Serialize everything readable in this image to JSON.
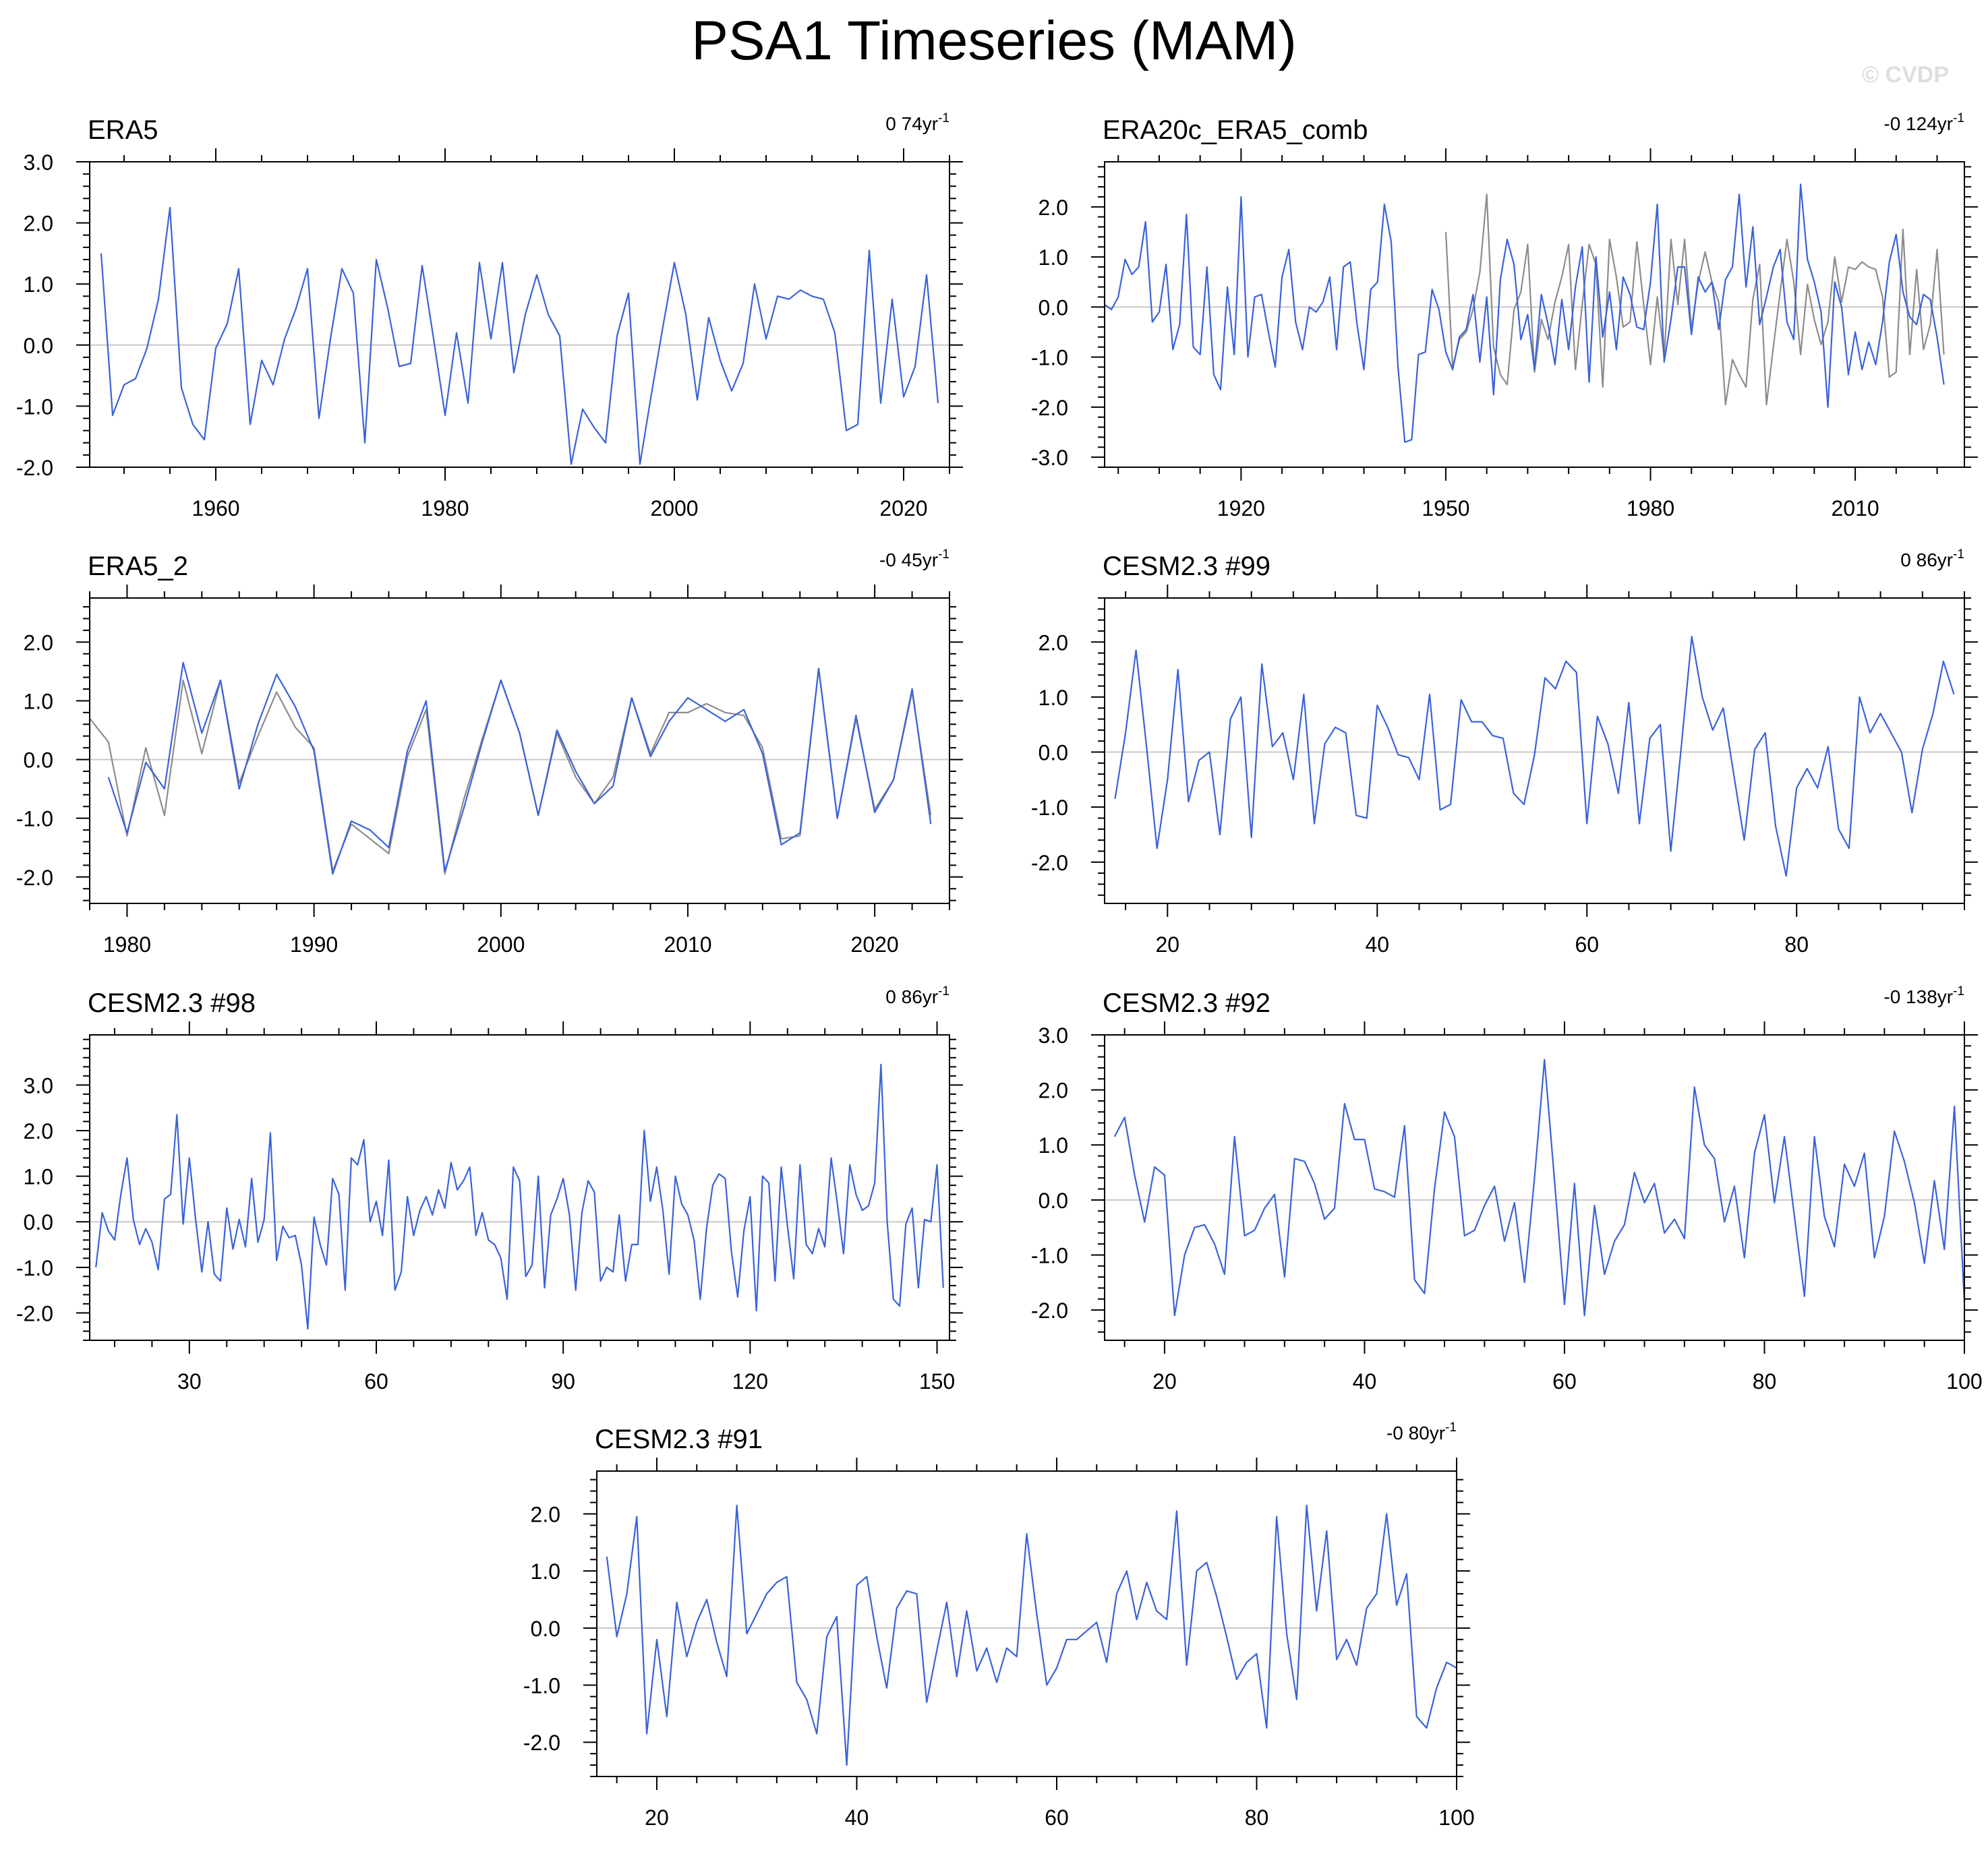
{
  "page": {
    "title": "PSA1 Timeseries (MAM)",
    "watermark": "© CVDP",
    "trend_suffix": "yr",
    "trend_exp": "-1"
  },
  "style": {
    "line_color": "#3a62d9",
    "second_color": "#8c8c8c",
    "zero_color": "#c8c8c8"
  },
  "chart_data": [
    {
      "type": "line",
      "title": "ERA5",
      "trend": "0 74",
      "xlim": [
        1949,
        2024
      ],
      "ylim": [
        -2.0,
        3.0
      ],
      "yticks": [
        -2.0,
        -1.0,
        0.0,
        1.0,
        2.0,
        3.0
      ],
      "xticks": [
        1960,
        1980,
        2000,
        2020
      ],
      "x_start": 1950,
      "series": [
        {
          "name": "ERA5",
          "values": [
            1.5,
            -1.15,
            -0.65,
            -0.55,
            -0.05,
            0.75,
            2.25,
            -0.7,
            -1.3,
            -1.55,
            -0.05,
            0.35,
            1.25,
            -1.3,
            -0.25,
            -0.65,
            0.1,
            0.6,
            1.25,
            -1.2,
            0.1,
            1.25,
            0.85,
            -1.6,
            1.4,
            0.6,
            -0.35,
            -0.3,
            1.3,
            0.1,
            -1.15,
            0.2,
            -0.95,
            1.35,
            0.1,
            1.35,
            -0.45,
            0.5,
            1.15,
            0.5,
            0.15,
            -1.95,
            -1.05,
            -1.35,
            -1.6,
            0.15,
            0.85,
            -1.95,
            -0.8,
            0.3,
            1.35,
            0.5,
            -0.9,
            0.45,
            -0.25,
            -0.75,
            -0.3,
            1.0,
            0.1,
            0.8,
            0.75,
            0.9,
            0.8,
            0.75,
            0.2,
            -1.4,
            -1.3,
            1.55,
            -0.95,
            0.75,
            -0.85,
            -0.35,
            1.15,
            -0.95
          ]
        }
      ]
    },
    {
      "type": "line",
      "title": "ERA20c_ERA5_comb",
      "trend": "-0 124",
      "xlim": [
        1900,
        2026
      ],
      "ylim": [
        -3.2,
        2.9
      ],
      "yticks": [
        -3.0,
        -2.0,
        -1.0,
        0.0,
        1.0,
        2.0
      ],
      "xticks": [
        1920,
        1950,
        1980,
        2010
      ],
      "x_start": 1900,
      "series": [
        {
          "name": "ERA20c_ERA5_comb",
          "values": [
            0.05,
            -0.05,
            0.2,
            0.95,
            0.65,
            0.8,
            1.7,
            -0.3,
            -0.1,
            0.85,
            -0.85,
            -0.35,
            1.85,
            -0.8,
            -0.95,
            0.8,
            -1.35,
            -1.65,
            0.4,
            -0.95,
            2.2,
            -1.0,
            0.2,
            0.25,
            -0.5,
            -1.2,
            0.6,
            1.15,
            -0.3,
            -0.85,
            0.0,
            -0.1,
            0.1,
            0.6,
            -0.85,
            0.8,
            0.9,
            -0.35,
            -1.25,
            0.35,
            0.5,
            2.05,
            1.3,
            -1.2,
            -2.7,
            -2.65,
            -0.95,
            -0.9,
            0.35,
            -0.05,
            -0.9,
            -1.25,
            -0.6,
            -0.45,
            0.25,
            -1.1,
            0.2,
            -1.75,
            0.55,
            1.35,
            0.85,
            -0.65,
            -0.15,
            -1.25,
            0.25,
            -0.35,
            -1.15,
            0.15,
            -0.85,
            0.4,
            1.2,
            -1.5,
            1.0,
            -0.6,
            0.3,
            -0.85,
            0.6,
            0.25,
            -0.4,
            -0.45,
            0.5,
            2.05,
            -1.1,
            -0.25,
            0.8,
            0.8,
            -0.55,
            0.6,
            0.3,
            0.5,
            -0.45,
            0.55,
            0.8,
            2.25,
            0.4,
            1.6,
            -0.35,
            0.2,
            0.8,
            1.15,
            -0.3,
            -0.65,
            2.45,
            0.95,
            0.5,
            -0.1,
            -2.0,
            0.5,
            0.0,
            -1.35,
            -0.5,
            -1.25,
            -0.7,
            -1.15,
            -0.3,
            0.9,
            1.45,
            0.3,
            -0.2,
            -0.35,
            0.25,
            0.15,
            -0.6,
            -1.55
          ]
        },
        {
          "name": "ERA20c",
          "x_start": 1950,
          "values": [
            1.5,
            -1.2,
            -0.65,
            -0.5,
            -0.05,
            0.7,
            2.25,
            -0.8,
            -1.35,
            -1.55,
            -0.05,
            0.3,
            1.25,
            -1.3,
            -0.25,
            -0.65,
            0.1,
            0.6,
            1.25,
            -1.25,
            0.05,
            1.25,
            0.85,
            -1.6,
            1.35,
            0.6,
            -0.4,
            -0.3,
            1.3,
            0.05,
            -1.15,
            0.2,
            -1.0,
            1.35,
            0.05,
            1.35,
            -0.45,
            0.5,
            1.1,
            0.5,
            0.1,
            -1.95,
            -1.05,
            -1.35,
            -1.6,
            0.15,
            0.85,
            -1.95,
            -0.8,
            0.3,
            1.35,
            0.5,
            -0.95,
            0.45,
            -0.25,
            -0.75,
            -0.3,
            1.0,
            0.1,
            0.8,
            0.75,
            0.9,
            0.8,
            0.75,
            0.2,
            -1.4,
            -1.3,
            1.55,
            -0.95,
            0.75,
            -0.85,
            -0.35,
            1.15,
            -0.95
          ]
        }
      ]
    },
    {
      "type": "line",
      "title": "ERA5_2",
      "trend": "-0 45",
      "xlim": [
        1978,
        2024
      ],
      "ylim": [
        -2.45,
        2.75
      ],
      "yticks": [
        -2.0,
        -1.0,
        0.0,
        1.0,
        2.0
      ],
      "xticks": [
        1980,
        1990,
        2000,
        2010,
        2020
      ],
      "x_start": 1979,
      "series": [
        {
          "name": "ERA5_2",
          "values": [
            -0.3,
            -1.25,
            -0.05,
            -0.5,
            1.65,
            0.45,
            1.35,
            -0.5,
            0.6,
            1.45,
            0.9,
            0.15,
            -1.95,
            -1.05,
            -1.2,
            -1.5,
            0.15,
            1.0,
            -1.9,
            -0.85,
            0.3,
            1.35,
            0.45,
            -0.95,
            0.5,
            -0.2,
            -0.75,
            -0.45,
            1.05,
            0.05,
            0.65,
            1.05,
            0.85,
            0.65,
            0.85,
            0.1,
            -1.45,
            -1.25,
            1.55,
            -1.0,
            0.75,
            -0.9,
            -0.35,
            1.2,
            -1.1
          ]
        },
        {
          "name": "ERA5_2 (grey)",
          "x_start": 1978,
          "values": [
            0.7,
            0.3,
            -1.3,
            0.2,
            -0.95,
            1.35,
            0.1,
            1.35,
            -0.4,
            0.4,
            1.15,
            0.55,
            0.2,
            -1.9,
            -1.1,
            -1.35,
            -1.6,
            0.05,
            0.85,
            -1.95,
            -0.7,
            0.35,
            1.35,
            0.45,
            -0.95,
            0.45,
            -0.3,
            -0.75,
            -0.3,
            1.05,
            0.1,
            0.8,
            0.8,
            0.95,
            0.8,
            0.75,
            0.2,
            -1.35,
            -1.3,
            1.55,
            -1.0,
            0.7,
            -0.85,
            -0.35,
            1.15,
            -0.95
          ]
        }
      ]
    },
    {
      "type": "line",
      "title": "CESM2.3 #99",
      "trend": "0 86",
      "xlim": [
        14,
        96
      ],
      "ylim": [
        -2.75,
        2.8
      ],
      "yticks": [
        -2.0,
        -1.0,
        0.0,
        1.0,
        2.0
      ],
      "xticks": [
        20,
        40,
        60,
        80
      ],
      "x_start": 15,
      "series": [
        {
          "name": "CESM2.3 #99",
          "values": [
            -0.85,
            0.35,
            1.85,
            0.1,
            -1.75,
            -0.5,
            1.5,
            -0.9,
            -0.15,
            0.0,
            -1.5,
            0.6,
            1.0,
            -1.55,
            1.6,
            0.1,
            0.35,
            -0.5,
            1.05,
            -1.3,
            0.15,
            0.45,
            0.35,
            -1.15,
            -1.2,
            0.85,
            0.45,
            -0.05,
            -0.1,
            -0.5,
            1.05,
            -1.05,
            -0.95,
            0.95,
            0.55,
            0.55,
            0.3,
            0.25,
            -0.75,
            -0.95,
            -0.05,
            1.35,
            1.15,
            1.65,
            1.45,
            -1.3,
            0.65,
            0.15,
            -0.75,
            0.9,
            -1.3,
            0.25,
            0.5,
            -1.8,
            0.1,
            2.1,
            1.0,
            0.4,
            0.8,
            -0.4,
            -1.6,
            0.05,
            0.35,
            -1.35,
            -2.25,
            -0.65,
            -0.3,
            -0.65,
            0.1,
            -1.4,
            -1.75,
            1.0,
            0.35,
            0.7,
            0.35,
            0.0,
            -1.1,
            0.05,
            0.7,
            1.65,
            1.05
          ]
        }
      ]
    },
    {
      "type": "line",
      "title": "CESM2.3 #98",
      "trend": "0 86",
      "xlim": [
        14,
        152
      ],
      "ylim": [
        -2.6,
        4.1
      ],
      "yticks": [
        -2.0,
        -1.0,
        0.0,
        1.0,
        2.0,
        3.0
      ],
      "xticks": [
        30,
        60,
        90,
        120,
        150
      ],
      "x_start": 15,
      "series": [
        {
          "name": "CESM2.3 #98",
          "values": [
            -1.0,
            0.2,
            -0.2,
            -0.4,
            0.6,
            1.4,
            0.05,
            -0.5,
            -0.15,
            -0.45,
            -1.05,
            0.5,
            0.6,
            2.35,
            -0.05,
            1.4,
            0.05,
            -1.1,
            0.0,
            -1.15,
            -1.3,
            0.3,
            -0.6,
            0.05,
            -0.55,
            0.95,
            -0.45,
            0.05,
            1.95,
            -0.85,
            -0.1,
            -0.35,
            -0.3,
            -0.95,
            -2.35,
            0.1,
            -0.5,
            -0.95,
            0.95,
            0.6,
            -1.5,
            1.4,
            1.25,
            1.8,
            0.0,
            0.45,
            -0.3,
            1.35,
            -1.5,
            -1.1,
            0.55,
            -0.3,
            0.25,
            0.55,
            0.15,
            0.7,
            0.3,
            1.3,
            0.7,
            0.9,
            1.2,
            -0.3,
            0.2,
            -0.4,
            -0.5,
            -0.8,
            -1.7,
            1.2,
            0.9,
            -1.2,
            -0.95,
            1.0,
            -1.45,
            0.15,
            0.5,
            0.95,
            0.15,
            -1.5,
            0.2,
            0.9,
            0.65,
            -1.3,
            -1.0,
            -1.1,
            0.15,
            -1.3,
            -0.5,
            -0.5,
            2.0,
            0.45,
            1.2,
            0.25,
            -1.15,
            1.0,
            0.4,
            0.15,
            -0.4,
            -1.7,
            -0.15,
            0.8,
            1.05,
            0.95,
            -0.65,
            -1.65,
            -0.2,
            0.55,
            -1.95,
            1.0,
            0.85,
            -1.3,
            1.2,
            -0.1,
            -1.25,
            1.25,
            -0.5,
            -0.7,
            -0.15,
            -0.55,
            1.4,
            0.4,
            -0.7,
            1.25,
            0.6,
            0.25,
            0.35,
            0.85,
            3.45,
            0.0,
            -1.7,
            -1.85,
            -0.05,
            0.3,
            -1.45,
            0.05,
            0.0,
            1.25,
            -1.45
          ]
        }
      ]
    },
    {
      "type": "line",
      "title": "CESM2.3 #92",
      "trend": "-0 138",
      "xlim": [
        14,
        100
      ],
      "ylim": [
        -2.55,
        3.0
      ],
      "yticks": [
        -2.0,
        -1.0,
        0.0,
        1.0,
        2.0,
        3.0
      ],
      "xticks": [
        20,
        40,
        60,
        80,
        100
      ],
      "x_start": 15,
      "series": [
        {
          "name": "CESM2.3 #92",
          "values": [
            1.15,
            1.5,
            0.45,
            -0.4,
            0.6,
            0.45,
            -2.1,
            -1.0,
            -0.5,
            -0.45,
            -0.8,
            -1.35,
            1.15,
            -0.65,
            -0.55,
            -0.15,
            0.1,
            -1.4,
            0.75,
            0.7,
            0.3,
            -0.35,
            -0.15,
            1.75,
            1.1,
            1.1,
            0.2,
            0.15,
            0.05,
            1.35,
            -1.45,
            -1.7,
            0.2,
            1.6,
            1.15,
            -0.65,
            -0.55,
            -0.1,
            0.25,
            -0.75,
            -0.05,
            -1.5,
            0.4,
            2.55,
            0.35,
            -1.9,
            0.3,
            -2.1,
            -0.1,
            -1.35,
            -0.75,
            -0.45,
            0.5,
            -0.05,
            0.3,
            -0.6,
            -0.35,
            -0.7,
            2.05,
            1.0,
            0.75,
            -0.4,
            0.25,
            -1.05,
            0.85,
            1.55,
            -0.05,
            1.15,
            -0.3,
            -1.75,
            1.15,
            -0.3,
            -0.85,
            0.65,
            0.25,
            0.85,
            -1.05,
            -0.3,
            1.25,
            0.7,
            -0.05,
            -1.15,
            0.35,
            -0.9,
            1.7,
            -1.85
          ]
        }
      ]
    },
    {
      "type": "line",
      "title": "CESM2.3 #91",
      "trend": "-0 80",
      "xlim": [
        14,
        100
      ],
      "ylim": [
        -2.6,
        2.75
      ],
      "yticks": [
        -2.0,
        -1.0,
        0.0,
        1.0,
        2.0
      ],
      "xticks": [
        20,
        40,
        60,
        80,
        100
      ],
      "x_start": 15,
      "series": [
        {
          "name": "CESM2.3 #91",
          "values": [
            1.25,
            -0.15,
            0.6,
            1.95,
            -1.85,
            -0.2,
            -1.55,
            0.45,
            -0.5,
            0.1,
            0.5,
            -0.25,
            -0.85,
            2.15,
            -0.1,
            0.25,
            0.6,
            0.8,
            0.9,
            -0.95,
            -1.25,
            -1.85,
            -0.15,
            0.2,
            -2.4,
            0.75,
            0.9,
            -0.15,
            -1.05,
            0.35,
            0.65,
            0.6,
            -1.3,
            -0.4,
            0.45,
            -0.85,
            0.3,
            -0.75,
            -0.35,
            -0.95,
            -0.35,
            -0.5,
            1.65,
            0.25,
            -1.0,
            -0.7,
            -0.2,
            -0.2,
            -0.05,
            0.1,
            -0.6,
            0.6,
            1.0,
            0.15,
            0.8,
            0.3,
            0.15,
            2.05,
            -0.65,
            1.0,
            1.15,
            0.55,
            -0.15,
            -0.9,
            -0.6,
            -0.45,
            -1.75,
            1.95,
            -0.1,
            -1.25,
            2.15,
            0.3,
            1.7,
            -0.55,
            -0.2,
            -0.65,
            0.35,
            0.6,
            2.0,
            0.4,
            0.95,
            -1.55,
            -1.75,
            -1.05,
            -0.6,
            -0.7
          ]
        }
      ]
    }
  ]
}
